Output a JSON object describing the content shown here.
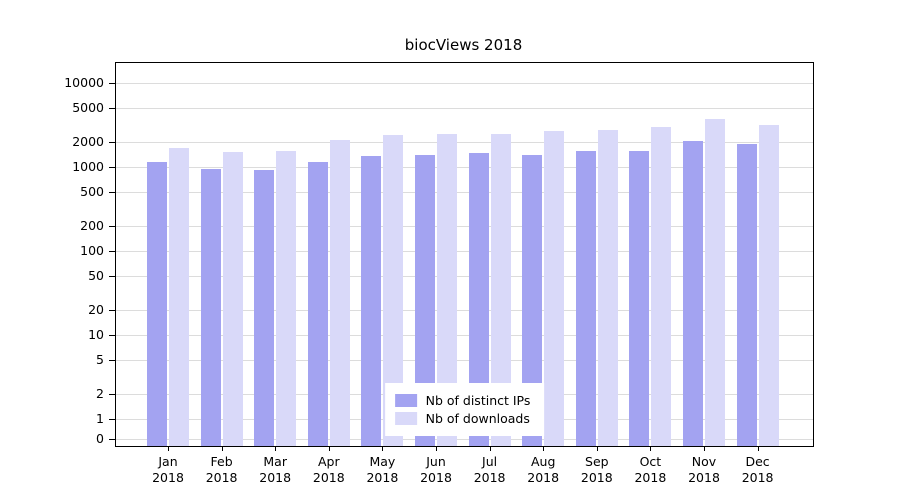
{
  "chart_data": {
    "type": "bar",
    "title": "biocViews 2018",
    "year_label": "2018",
    "categories": [
      "Jan",
      "Feb",
      "Mar",
      "Apr",
      "May",
      "Jun",
      "Jul",
      "Aug",
      "Sep",
      "Oct",
      "Nov",
      "Dec"
    ],
    "series": [
      {
        "name": "Nb of distinct IPs",
        "color": "#a3a3f1",
        "values": [
          1150,
          950,
          930,
          1150,
          1350,
          1400,
          1450,
          1400,
          1550,
          1550,
          2050,
          1900
        ]
      },
      {
        "name": "Nb of downloads",
        "color": "#d9d9f9",
        "values": [
          1700,
          1500,
          1550,
          2100,
          2400,
          2450,
          2450,
          2650,
          2750,
          3000,
          3700,
          3200
        ]
      }
    ],
    "y_ticks": [
      10000,
      5000,
      2000,
      1000,
      500,
      200,
      100,
      50,
      20,
      10,
      5,
      2,
      1,
      0
    ],
    "y_scale": "log",
    "ylim": [
      0,
      12000
    ],
    "grid": true,
    "legend_position": "bottom-center",
    "colors": {
      "gridline": "#dcdcdc",
      "axis": "#000000",
      "background": "#ffffff"
    }
  }
}
